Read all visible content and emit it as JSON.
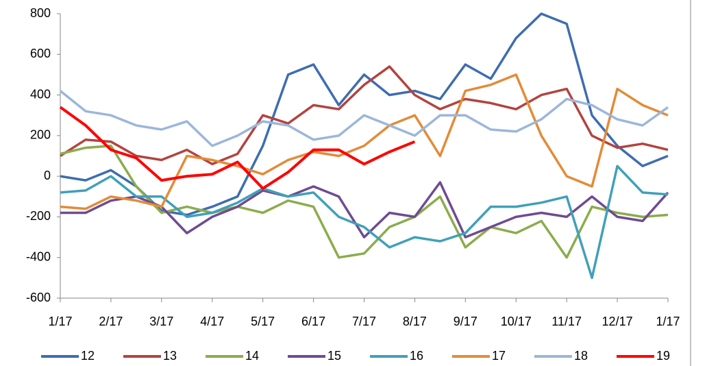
{
  "chart_data": {
    "type": "line",
    "categories": [
      "1/17",
      null,
      "2/17",
      null,
      "3/17",
      null,
      "4/17",
      null,
      "5/17",
      null,
      "6/17",
      null,
      "7/17",
      null,
      "8/17",
      null,
      "9/17",
      null,
      "10/17",
      null,
      "11/17",
      null,
      "12/17",
      null,
      "1/17"
    ],
    "ylim": [
      -600,
      800
    ],
    "yticks": [
      -600,
      -400,
      -200,
      0,
      200,
      400,
      600,
      800
    ],
    "legend": "bottom",
    "series": [
      {
        "name": "12",
        "color": "#3e6db0",
        "values": [
          0,
          -20,
          30,
          -50,
          -170,
          -190,
          -150,
          -100,
          150,
          500,
          550,
          350,
          500,
          400,
          420,
          380,
          550,
          480,
          680,
          800,
          750,
          300,
          150,
          50,
          100
        ]
      },
      {
        "name": "13",
        "color": "#b3433f",
        "values": [
          100,
          180,
          170,
          100,
          80,
          130,
          60,
          110,
          300,
          260,
          350,
          330,
          450,
          540,
          400,
          330,
          380,
          360,
          330,
          400,
          430,
          200,
          140,
          160,
          130
        ]
      },
      {
        "name": "14",
        "color": "#8bac4c",
        "values": [
          110,
          140,
          150,
          -50,
          -180,
          -150,
          -180,
          -150,
          -180,
          -120,
          -150,
          -400,
          -380,
          -250,
          -200,
          -100,
          -350,
          -250,
          -280,
          -220,
          -400,
          -150,
          -180,
          -200,
          -190
        ]
      },
      {
        "name": "15",
        "color": "#6f4b92",
        "values": [
          -180,
          -180,
          -120,
          -100,
          -150,
          -280,
          -200,
          -150,
          -70,
          -100,
          -50,
          -100,
          -300,
          -180,
          -200,
          -30,
          -300,
          -250,
          -200,
          -180,
          -200,
          -100,
          -200,
          -220,
          -80
        ]
      },
      {
        "name": "16",
        "color": "#41a0b9",
        "values": [
          -80,
          -70,
          0,
          -100,
          -100,
          -200,
          -180,
          -130,
          -60,
          -100,
          -80,
          -200,
          -250,
          -350,
          -300,
          -320,
          -280,
          -150,
          -150,
          -130,
          -100,
          -500,
          50,
          -80,
          -90
        ]
      },
      {
        "name": "17",
        "color": "#e38b37",
        "values": [
          -150,
          -160,
          -100,
          -120,
          -150,
          100,
          80,
          50,
          10,
          80,
          120,
          100,
          150,
          250,
          300,
          100,
          420,
          450,
          500,
          200,
          0,
          -50,
          430,
          350,
          300
        ]
      },
      {
        "name": "18",
        "color": "#9cb6da",
        "values": [
          420,
          320,
          300,
          250,
          230,
          270,
          150,
          200,
          270,
          250,
          180,
          200,
          300,
          250,
          200,
          300,
          300,
          230,
          220,
          280,
          380,
          350,
          280,
          250,
          340
        ]
      },
      {
        "name": "19",
        "color": "#ff0000",
        "values": [
          340,
          250,
          130,
          90,
          -20,
          0,
          10,
          70,
          -60,
          20,
          130,
          130,
          60,
          120,
          170,
          null,
          null,
          null,
          null,
          null,
          null,
          null,
          null,
          null,
          null
        ]
      }
    ]
  }
}
